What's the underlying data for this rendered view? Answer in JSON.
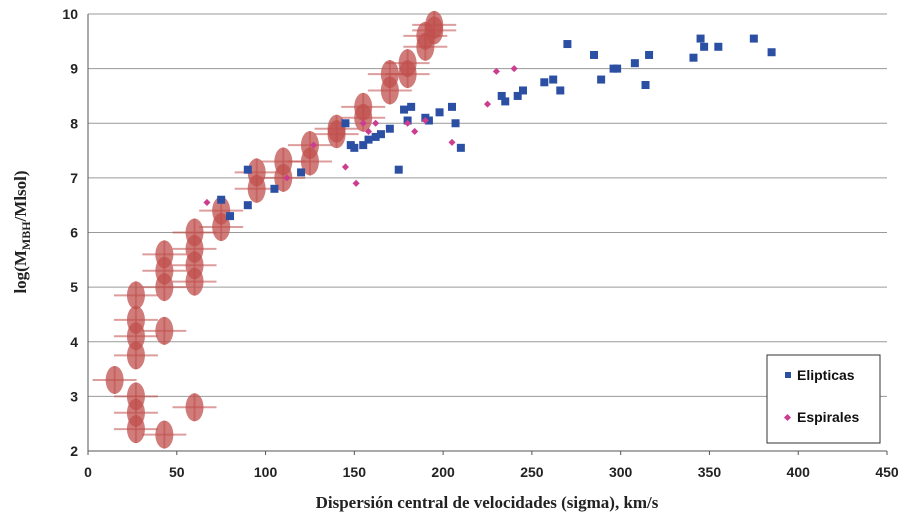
{
  "chart_data": {
    "type": "scatter",
    "xlabel": "Dispersión central de velocidades (sigma), km/s",
    "ylabel_prefix": "log(M",
    "ylabel_sub": "MBH",
    "ylabel_suffix": "/Mlsol)",
    "xlim": [
      0,
      450
    ],
    "ylim": [
      2,
      10
    ],
    "x_ticks": [
      "0",
      "50",
      "100",
      "150",
      "200",
      "250",
      "300",
      "350",
      "400",
      "450"
    ],
    "y_ticks": [
      "2",
      "3",
      "4",
      "5",
      "6",
      "7",
      "8",
      "9",
      "10"
    ],
    "grid": true,
    "legend_position": "bottom-right",
    "colors": {
      "elipticas": "#2b4fa3",
      "espirales": "#cc3d8f",
      "overlay": "#c0504d",
      "grid": "#9a9a9a",
      "axis": "#555555"
    },
    "series": [
      {
        "name": "Elipticas",
        "marker": "square",
        "points": [
          [
            75,
            6.6
          ],
          [
            80,
            6.3
          ],
          [
            90,
            7.15
          ],
          [
            90,
            6.5
          ],
          [
            105,
            6.8
          ],
          [
            120,
            7.1
          ],
          [
            145,
            8.0
          ],
          [
            148,
            7.6
          ],
          [
            150,
            7.55
          ],
          [
            155,
            7.6
          ],
          [
            158,
            7.7
          ],
          [
            162,
            7.75
          ],
          [
            165,
            7.8
          ],
          [
            170,
            7.9
          ],
          [
            175,
            7.15
          ],
          [
            178,
            8.25
          ],
          [
            180,
            8.05
          ],
          [
            182,
            8.3
          ],
          [
            190,
            8.1
          ],
          [
            192,
            8.05
          ],
          [
            198,
            8.2
          ],
          [
            205,
            8.3
          ],
          [
            207,
            8.0
          ],
          [
            210,
            7.55
          ],
          [
            233,
            8.5
          ],
          [
            235,
            8.4
          ],
          [
            242,
            8.5
          ],
          [
            245,
            8.6
          ],
          [
            257,
            8.75
          ],
          [
            262,
            8.8
          ],
          [
            266,
            8.6
          ],
          [
            270,
            9.45
          ],
          [
            285,
            9.25
          ],
          [
            289,
            8.8
          ],
          [
            296,
            9.0
          ],
          [
            298,
            9.0
          ],
          [
            308,
            9.1
          ],
          [
            314,
            8.7
          ],
          [
            316,
            9.25
          ],
          [
            341,
            9.2
          ],
          [
            345,
            9.55
          ],
          [
            347,
            9.4
          ],
          [
            355,
            9.4
          ],
          [
            375,
            9.55
          ],
          [
            385,
            9.3
          ]
        ]
      },
      {
        "name": "Espirales",
        "marker": "diamond",
        "points": [
          [
            67,
            6.55
          ],
          [
            112,
            7.0
          ],
          [
            127,
            7.6
          ],
          [
            145,
            7.2
          ],
          [
            151,
            6.9
          ],
          [
            155,
            8.0
          ],
          [
            158,
            7.85
          ],
          [
            162,
            8.0
          ],
          [
            180,
            8.0
          ],
          [
            184,
            7.85
          ],
          [
            190,
            8.05
          ],
          [
            205,
            7.65
          ],
          [
            225,
            8.35
          ],
          [
            230,
            8.95
          ],
          [
            240,
            9.0
          ]
        ]
      }
    ],
    "overlay_series": {
      "style": "red ellipses with error bars",
      "points": [
        [
          15,
          3.3
        ],
        [
          27,
          2.4
        ],
        [
          27,
          2.7
        ],
        [
          27,
          3.0
        ],
        [
          27,
          3.75
        ],
        [
          27,
          4.1
        ],
        [
          27,
          4.4
        ],
        [
          27,
          4.85
        ],
        [
          43,
          2.3
        ],
        [
          43,
          4.2
        ],
        [
          43,
          5.0
        ],
        [
          43,
          5.3
        ],
        [
          43,
          5.6
        ],
        [
          60,
          2.8
        ],
        [
          60,
          5.1
        ],
        [
          60,
          5.4
        ],
        [
          60,
          5.7
        ],
        [
          60,
          6.0
        ],
        [
          75,
          6.1
        ],
        [
          75,
          6.4
        ],
        [
          95,
          6.8
        ],
        [
          95,
          7.1
        ],
        [
          110,
          7.0
        ],
        [
          110,
          7.3
        ],
        [
          125,
          7.3
        ],
        [
          125,
          7.6
        ],
        [
          140,
          7.8
        ],
        [
          140,
          7.9
        ],
        [
          155,
          8.1
        ],
        [
          155,
          8.3
        ],
        [
          170,
          8.6
        ],
        [
          170,
          8.9
        ],
        [
          180,
          8.9
        ],
        [
          180,
          9.1
        ],
        [
          190,
          9.4
        ],
        [
          190,
          9.6
        ],
        [
          195,
          9.7
        ],
        [
          195,
          9.8
        ]
      ]
    }
  }
}
